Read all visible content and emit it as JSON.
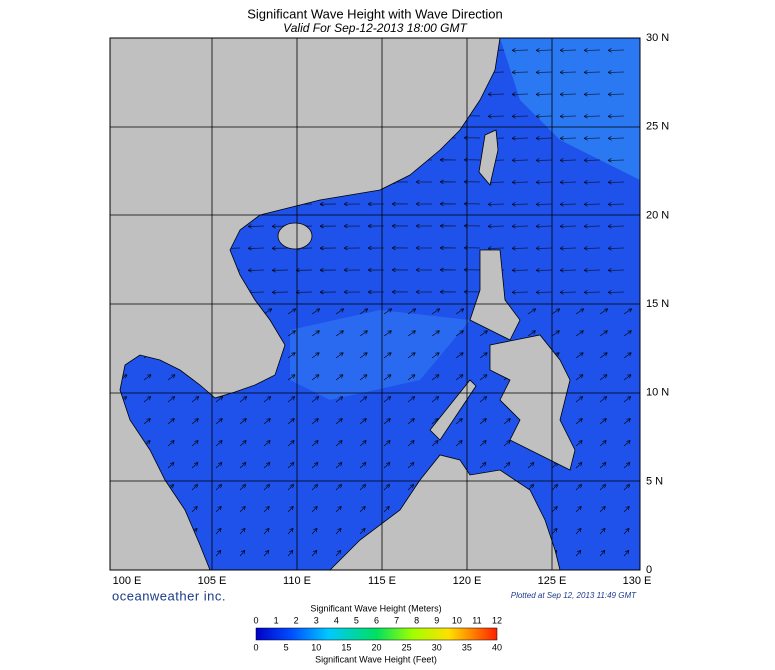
{
  "header": {
    "title": "Significant Wave Height with Wave Direction",
    "subtitle": "Valid For Sep-12-2013 18:00 GMT"
  },
  "map": {
    "lon_labels": [
      "100 E",
      "105 E",
      "110 E",
      "115 E",
      "120 E",
      "125 E",
      "130 E"
    ],
    "lat_labels": [
      "30 N",
      "25 N",
      "20 N",
      "15 N",
      "10 N",
      "5 N",
      "0"
    ]
  },
  "footer": {
    "credit": "oceanweather inc.",
    "plotted": "Plotted at Sep 12, 2013 11:49 GMT"
  },
  "colorbar": {
    "meters_title": "Significant Wave Height (Meters)",
    "meters_ticks": [
      "0",
      "1",
      "2",
      "3",
      "4",
      "5",
      "6",
      "7",
      "8",
      "9",
      "10",
      "11",
      "12"
    ],
    "feet_title": "Significant Wave Height (Feet)",
    "feet_ticks": [
      "0",
      "5",
      "10",
      "15",
      "20",
      "25",
      "30",
      "35",
      "40"
    ]
  }
}
